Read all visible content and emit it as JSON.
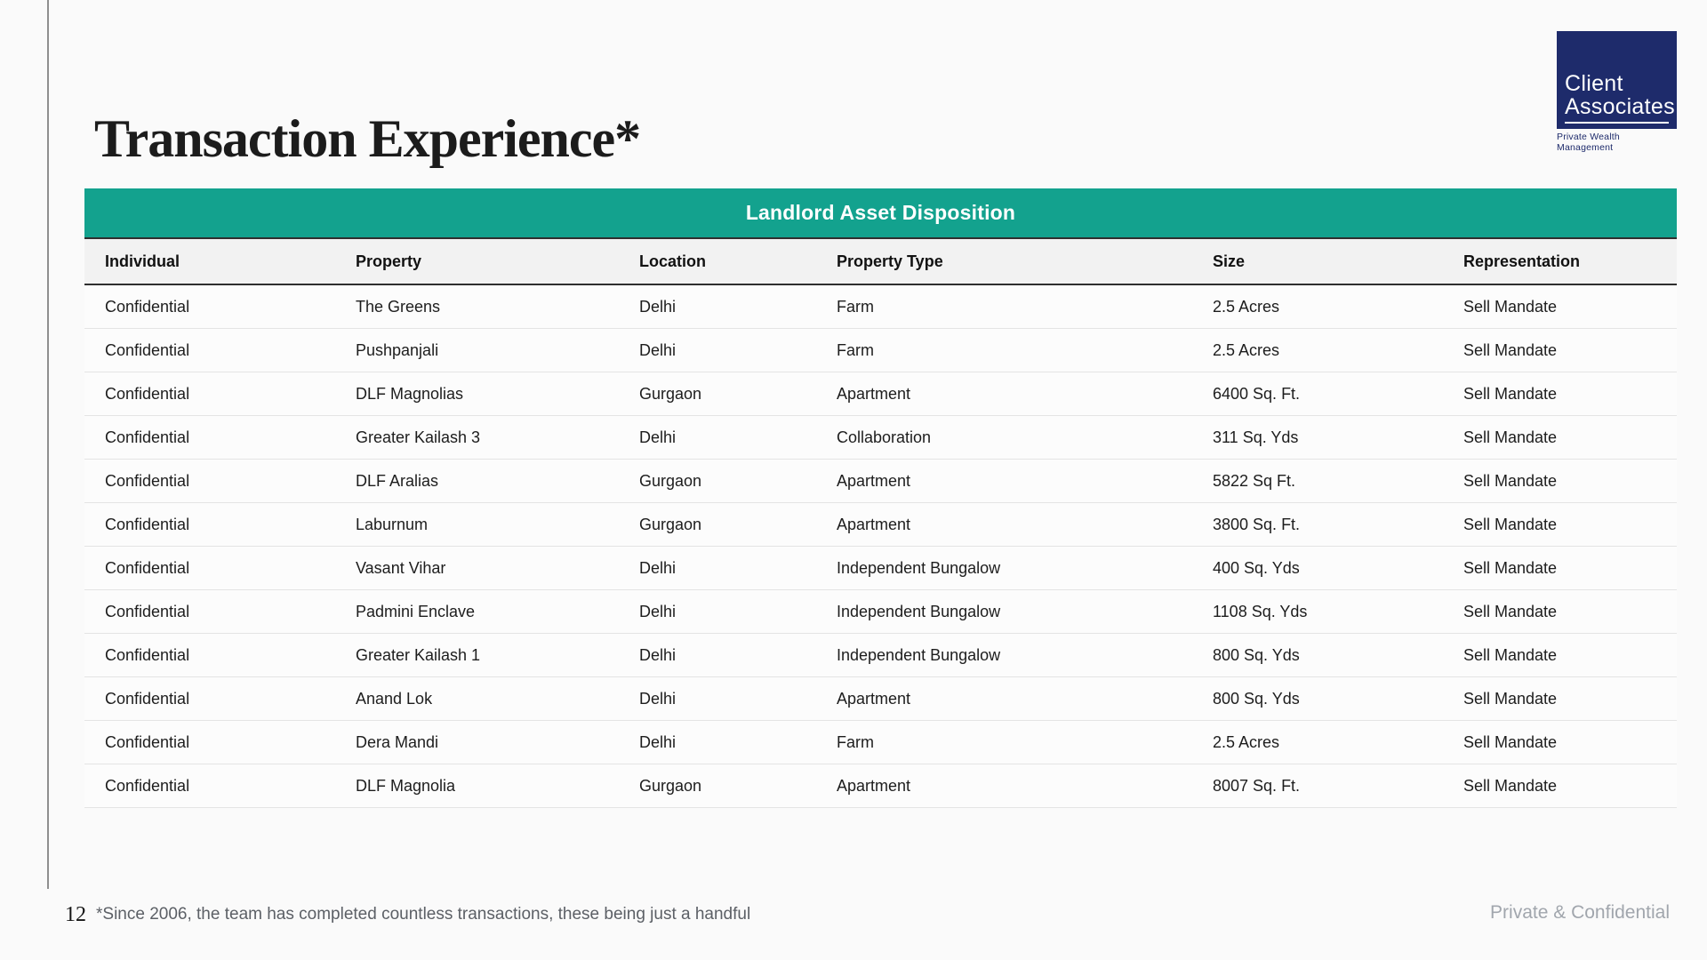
{
  "slide": {
    "title": "Transaction Experience*",
    "page_number": "12",
    "footnote": "*Since 2006, the team has completed countless transactions, these being just a handful",
    "classification": "Private & Confidential"
  },
  "logo": {
    "line1": "Client",
    "line2": "Associates",
    "tagline": "Private Wealth Management"
  },
  "colors": {
    "accent_teal": "#13A28E",
    "brand_navy": "#1E2B6B"
  },
  "table": {
    "title": "Landlord Asset Disposition",
    "columns": [
      "Individual",
      "Property",
      "Location",
      "Property Type",
      "Size",
      "Representation"
    ],
    "rows": [
      {
        "individual": "Confidential",
        "property": "The Greens",
        "location": "Delhi",
        "type": "Farm",
        "size": "2.5 Acres",
        "representation": "Sell Mandate"
      },
      {
        "individual": "Confidential",
        "property": "Pushpanjali",
        "location": "Delhi",
        "type": "Farm",
        "size": "2.5 Acres",
        "representation": "Sell Mandate"
      },
      {
        "individual": "Confidential",
        "property": "DLF Magnolias",
        "location": "Gurgaon",
        "type": "Apartment",
        "size": "6400 Sq. Ft.",
        "representation": "Sell Mandate"
      },
      {
        "individual": "Confidential",
        "property": "Greater Kailash 3",
        "location": "Delhi",
        "type": "Collaboration",
        "size": "311 Sq. Yds",
        "representation": "Sell Mandate"
      },
      {
        "individual": "Confidential",
        "property": "DLF Aralias",
        "location": "Gurgaon",
        "type": "Apartment",
        "size": "5822 Sq Ft.",
        "representation": "Sell Mandate"
      },
      {
        "individual": "Confidential",
        "property": "Laburnum",
        "location": "Gurgaon",
        "type": "Apartment",
        "size": "3800 Sq. Ft.",
        "representation": "Sell Mandate"
      },
      {
        "individual": "Confidential",
        "property": "Vasant Vihar",
        "location": "Delhi",
        "type": "Independent Bungalow",
        "size": "400 Sq. Yds",
        "representation": "Sell Mandate"
      },
      {
        "individual": "Confidential",
        "property": "Padmini Enclave",
        "location": "Delhi",
        "type": "Independent Bungalow",
        "size": "1108 Sq. Yds",
        "representation": "Sell Mandate"
      },
      {
        "individual": "Confidential",
        "property": "Greater Kailash 1",
        "location": "Delhi",
        "type": "Independent Bungalow",
        "size": "800 Sq. Yds",
        "representation": "Sell Mandate"
      },
      {
        "individual": "Confidential",
        "property": "Anand Lok",
        "location": "Delhi",
        "type": "Apartment",
        "size": "800 Sq. Yds",
        "representation": "Sell Mandate"
      },
      {
        "individual": "Confidential",
        "property": "Dera Mandi",
        "location": "Delhi",
        "type": "Farm",
        "size": "2.5 Acres",
        "representation": "Sell Mandate"
      },
      {
        "individual": "Confidential",
        "property": "DLF Magnolia",
        "location": "Gurgaon",
        "type": "Apartment",
        "size": "8007 Sq. Ft.",
        "representation": "Sell Mandate"
      }
    ]
  }
}
